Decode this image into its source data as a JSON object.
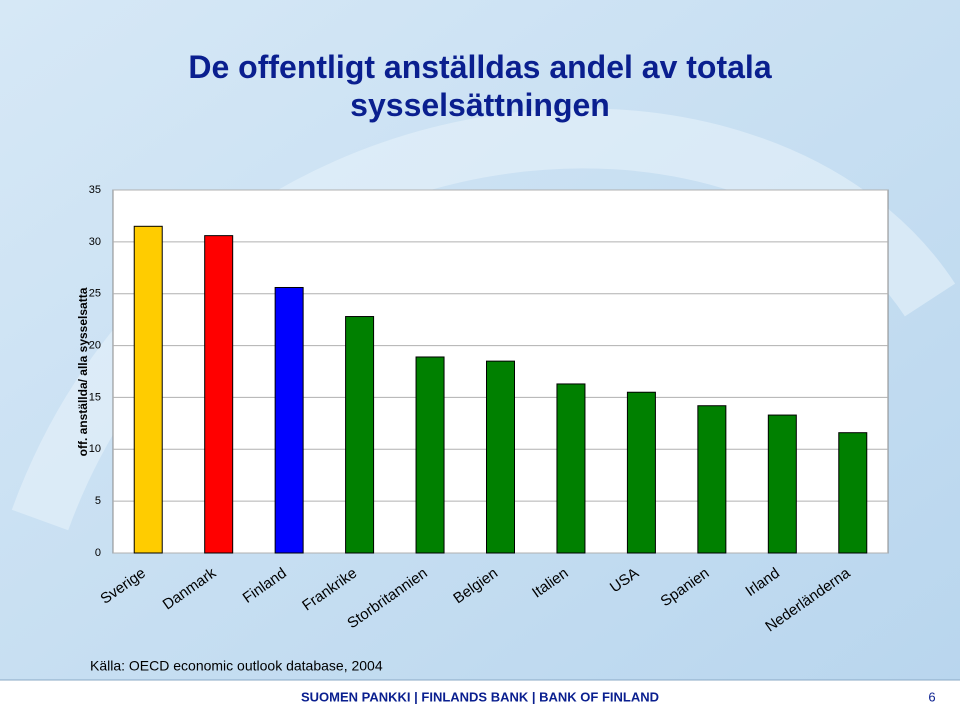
{
  "chart_data": {
    "type": "bar",
    "title": "De offentligt anställdas andel av totala sysselsättningen",
    "y_label": "off. anställda/ alla sysselsatta",
    "categories": [
      "Sverige",
      "Danmark",
      "Finland",
      "Frankrike",
      "Storbritannien",
      "Belgien",
      "Italien",
      "USA",
      "Spanien",
      "Irland",
      "Nederländerna"
    ],
    "values": [
      31.5,
      30.6,
      25.6,
      22.8,
      18.9,
      18.5,
      16.3,
      15.5,
      14.2,
      13.3,
      11.6
    ],
    "colors": [
      "#ffcc00",
      "#ff0000",
      "#0000ff",
      "#008000",
      "#008000",
      "#008000",
      "#008000",
      "#008000",
      "#008000",
      "#008000",
      "#008000"
    ],
    "ylim": [
      0,
      35
    ],
    "yticks": [
      0,
      5,
      10,
      15,
      20,
      25,
      30,
      35
    ],
    "grid": true,
    "source": "Källa: OECD economic outlook database, 2004"
  },
  "footer": {
    "text": "SUOMEN PANKKI | FINLANDS BANK | BANK OF FINLAND",
    "page": "6"
  }
}
